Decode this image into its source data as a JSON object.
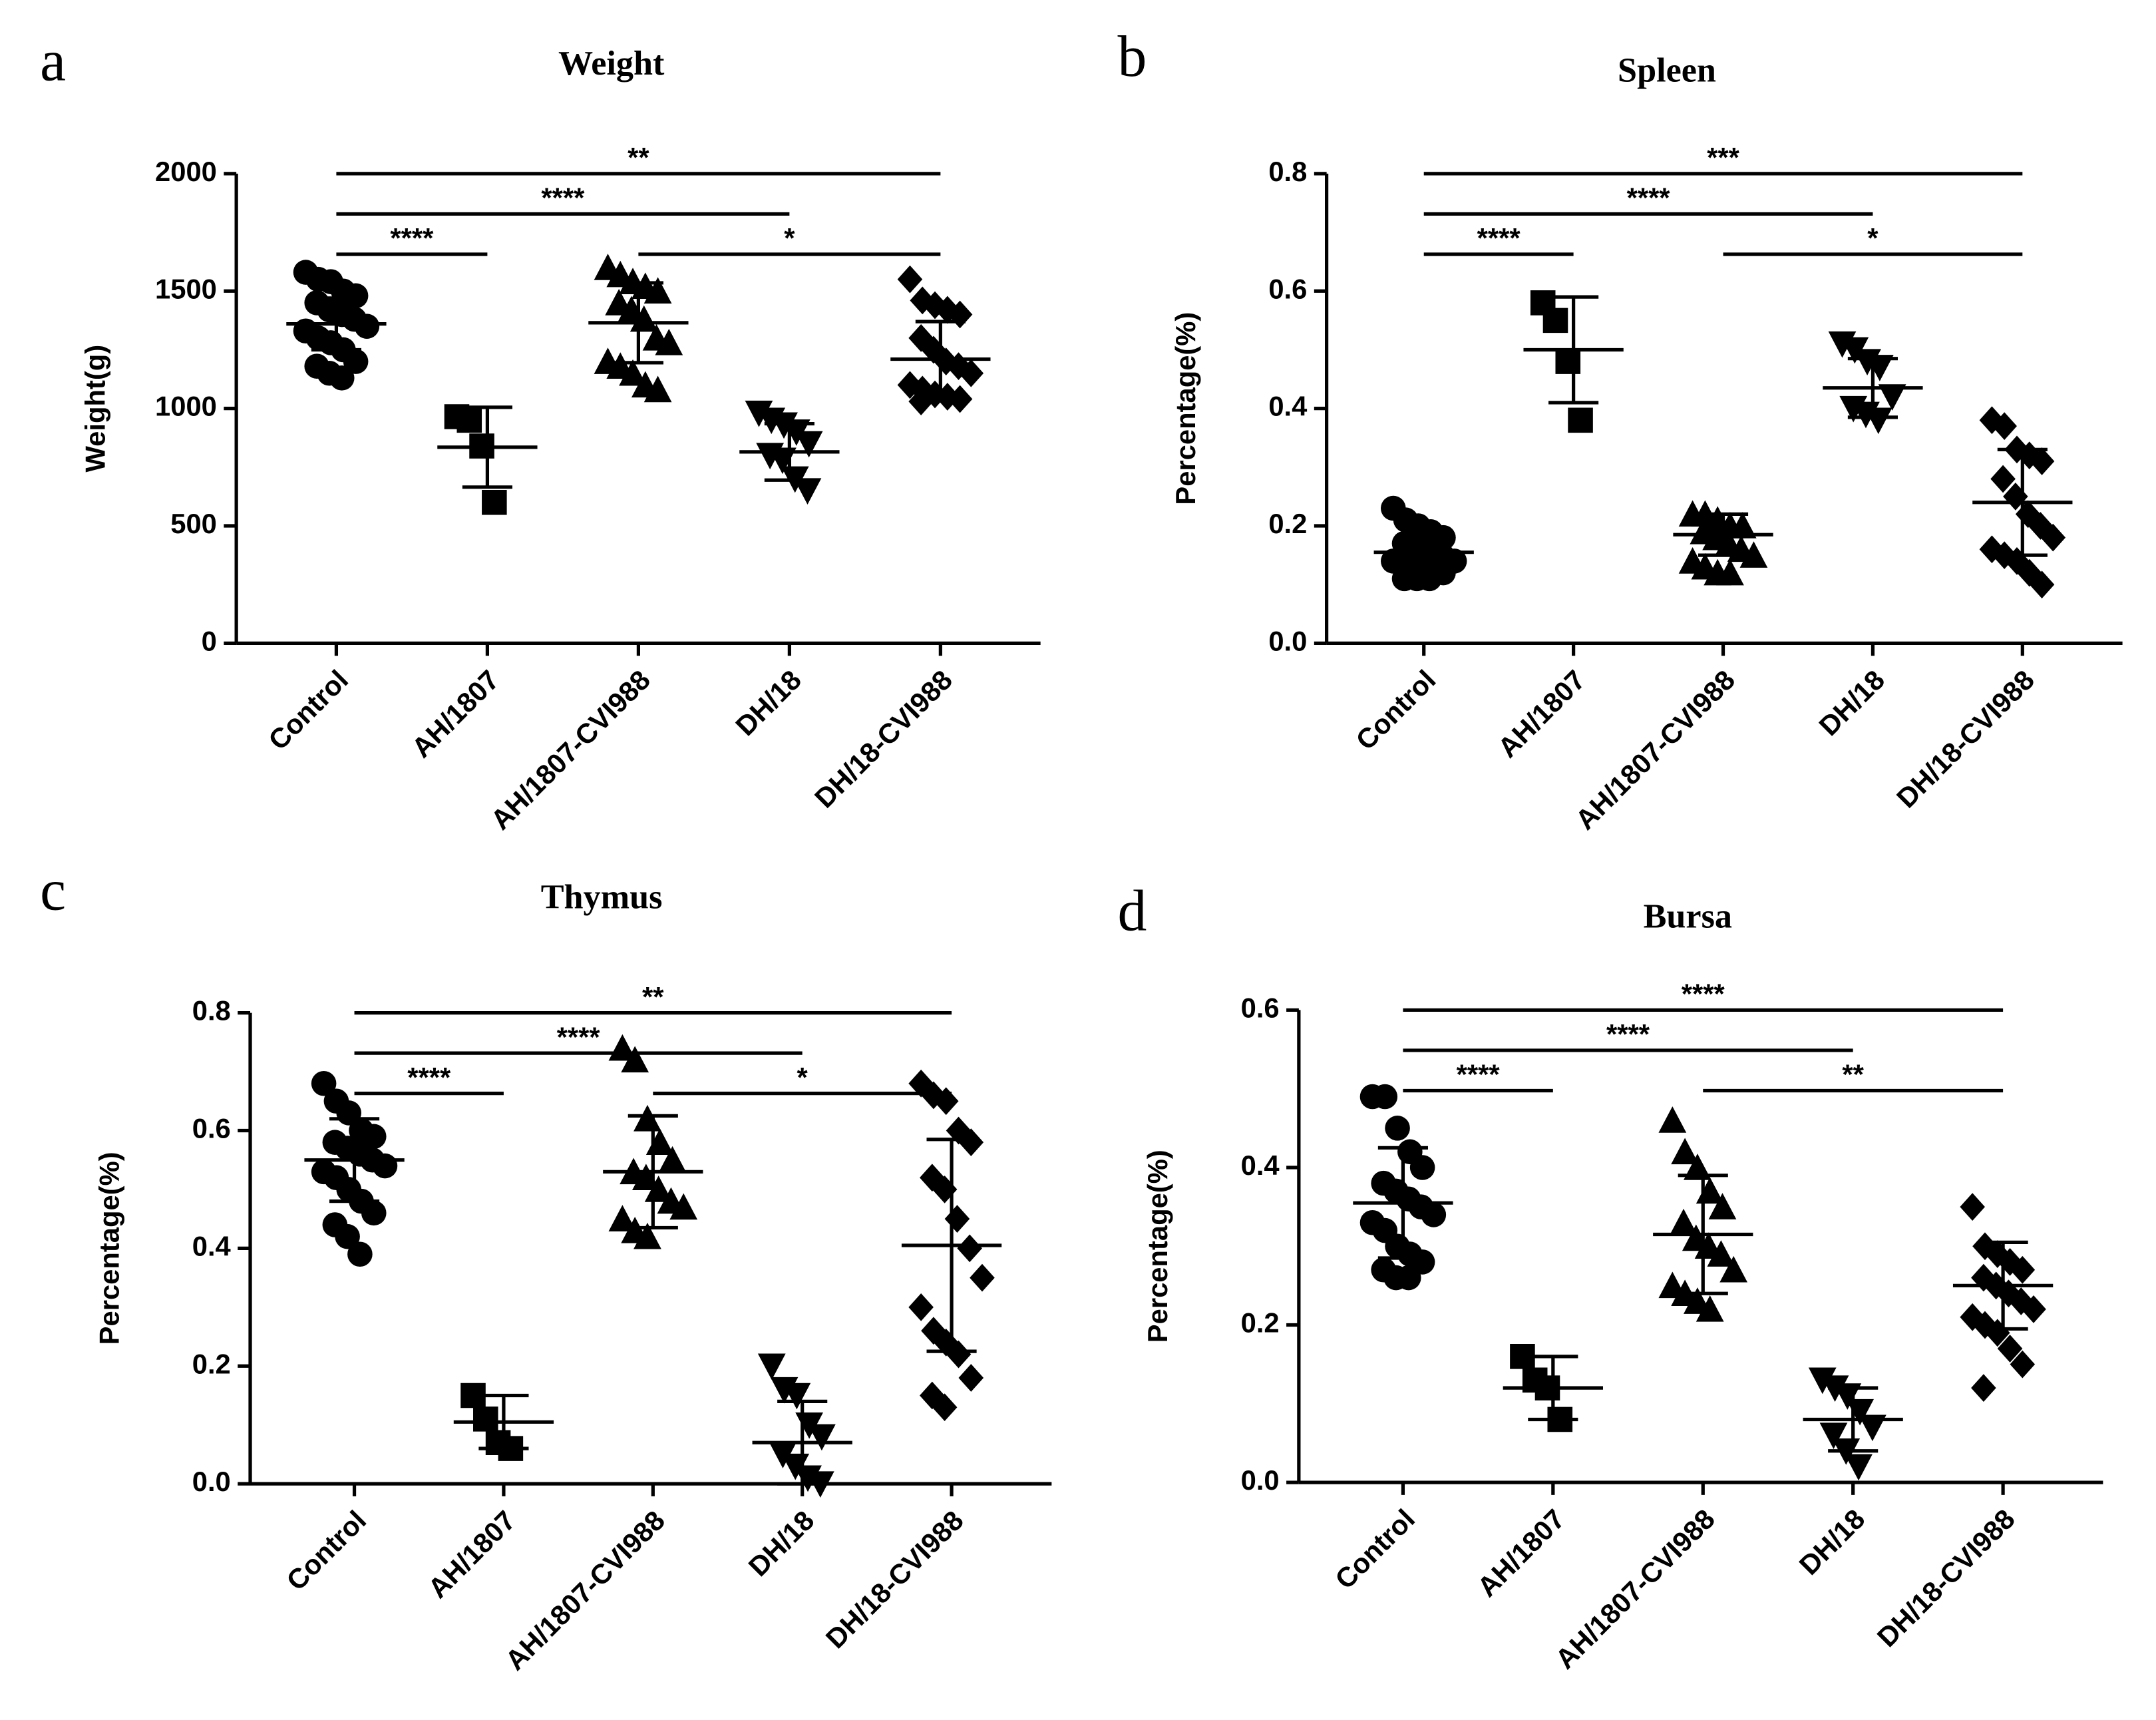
{
  "chart_data": [
    {
      "type": "dotplot",
      "panel": "a",
      "title": "Weight",
      "ylabel": "Weight(g)",
      "categories": [
        "Control",
        "AH/1807",
        "AH/1807-CVI988",
        "DH/18",
        "DH/18-CVI988"
      ],
      "markers": [
        "circle",
        "square",
        "triangle-up",
        "triangle-down",
        "diamond"
      ],
      "color": "#000000",
      "values": [
        [
          1580,
          1550,
          1540,
          1500,
          1480,
          1450,
          1420,
          1400,
          1380,
          1350,
          1330,
          1300,
          1280,
          1250,
          1200,
          1180,
          1150,
          1130
        ],
        [
          965,
          950,
          840,
          600
        ],
        [
          1600,
          1570,
          1540,
          1520,
          1500,
          1450,
          1420,
          1380,
          1300,
          1280,
          1200,
          1180,
          1150,
          1100,
          1080
        ],
        [
          980,
          950,
          930,
          900,
          850,
          800,
          780,
          700,
          650
        ],
        [
          1550,
          1460,
          1440,
          1420,
          1400,
          1300,
          1250,
          1200,
          1180,
          1150,
          1100,
          1080,
          1060,
          1050,
          1040,
          1030
        ]
      ],
      "means": [
        1360,
        835,
        1365,
        815,
        1210
      ],
      "sds": [
        110,
        170,
        170,
        120,
        160
      ],
      "ylim": [
        0,
        2000
      ],
      "yticks": [
        0,
        500,
        1000,
        1500,
        2000
      ],
      "comparisons": [
        {
          "pair": [
            0,
            1
          ],
          "label": "****"
        },
        {
          "pair": [
            2,
            4
          ],
          "label": "*"
        },
        {
          "pair": [
            0,
            3
          ],
          "label": "****"
        },
        {
          "pair": [
            0,
            4
          ],
          "label": "**"
        }
      ]
    },
    {
      "type": "dotplot",
      "panel": "b",
      "title": "Spleen",
      "ylabel": "Percentage(%)",
      "categories": [
        "Control",
        "AH/1807",
        "AH/1807-CVI988",
        "DH/18",
        "DH/18-CVI988"
      ],
      "markers": [
        "circle",
        "square",
        "triangle-up",
        "triangle-down",
        "diamond"
      ],
      "color": "#000000",
      "values": [
        [
          0.23,
          0.21,
          0.2,
          0.19,
          0.18,
          0.17,
          0.16,
          0.15,
          0.15,
          0.14,
          0.14,
          0.13,
          0.13,
          0.12,
          0.12,
          0.11,
          0.11,
          0.11
        ],
        [
          0.58,
          0.55,
          0.48,
          0.38
        ],
        [
          0.22,
          0.22,
          0.21,
          0.2,
          0.2,
          0.19,
          0.18,
          0.17,
          0.16,
          0.15,
          0.14,
          0.13,
          0.12,
          0.12
        ],
        [
          0.51,
          0.5,
          0.48,
          0.47,
          0.42,
          0.4,
          0.39,
          0.38
        ],
        [
          0.38,
          0.37,
          0.33,
          0.32,
          0.31,
          0.28,
          0.25,
          0.22,
          0.2,
          0.18,
          0.16,
          0.15,
          0.14,
          0.12,
          0.1
        ]
      ],
      "means": [
        0.155,
        0.5,
        0.185,
        0.435,
        0.24
      ],
      "sds": [
        0.03,
        0.09,
        0.035,
        0.05,
        0.09
      ],
      "ylim": [
        0,
        0.8
      ],
      "yticks": [
        {
          "value": 0,
          "label": "0.0"
        },
        0.2,
        0.4,
        0.6,
        0.8
      ],
      "comparisons": [
        {
          "pair": [
            0,
            1
          ],
          "label": "****"
        },
        {
          "pair": [
            2,
            4
          ],
          "label": "*"
        },
        {
          "pair": [
            0,
            3
          ],
          "label": "****"
        },
        {
          "pair": [
            0,
            4
          ],
          "label": "***"
        }
      ]
    },
    {
      "type": "dotplot",
      "panel": "c",
      "title": "Thymus",
      "ylabel": "Percentage(%)",
      "categories": [
        "Control",
        "AH/1807",
        "AH/1807-CVI988",
        "DH/18",
        "DH/18-CVI988"
      ],
      "markers": [
        "circle",
        "square",
        "triangle-up",
        "triangle-down",
        "diamond"
      ],
      "color": "#000000",
      "values": [
        [
          0.68,
          0.65,
          0.63,
          0.6,
          0.59,
          0.58,
          0.57,
          0.56,
          0.55,
          0.54,
          0.53,
          0.52,
          0.5,
          0.48,
          0.46,
          0.44,
          0.42,
          0.39
        ],
        [
          0.15,
          0.11,
          0.07,
          0.06
        ],
        [
          0.74,
          0.72,
          0.62,
          0.58,
          0.55,
          0.53,
          0.52,
          0.5,
          0.48,
          0.47,
          0.45,
          0.43,
          0.42
        ],
        [
          0.2,
          0.16,
          0.15,
          0.1,
          0.08,
          0.05,
          0.03,
          0.01,
          0
        ],
        [
          0.68,
          0.66,
          0.65,
          0.6,
          0.58,
          0.52,
          0.5,
          0.45,
          0.4,
          0.35,
          0.3,
          0.26,
          0.24,
          0.22,
          0.18,
          0.15,
          0.13
        ]
      ],
      "means": [
        0.55,
        0.105,
        0.53,
        0.07,
        0.405
      ],
      "sds": [
        0.07,
        0.045,
        0.095,
        0.07,
        0.18
      ],
      "ylim": [
        0,
        0.8
      ],
      "yticks": [
        {
          "value": 0,
          "label": "0.0"
        },
        0.2,
        0.4,
        0.6,
        0.8
      ],
      "comparisons": [
        {
          "pair": [
            0,
            1
          ],
          "label": "****"
        },
        {
          "pair": [
            2,
            4
          ],
          "label": "*"
        },
        {
          "pair": [
            0,
            3
          ],
          "label": "****"
        },
        {
          "pair": [
            0,
            4
          ],
          "label": "**"
        }
      ]
    },
    {
      "type": "dotplot",
      "panel": "d",
      "title": "Bursa",
      "ylabel": "Percentage(%)",
      "categories": [
        "Control",
        "AH/1807",
        "AH/1807-CVI988",
        "DH/18",
        "DH/18-CVI988"
      ],
      "markers": [
        "circle",
        "square",
        "triangle-up",
        "triangle-down",
        "diamond"
      ],
      "color": "#000000",
      "values": [
        [
          0.49,
          0.49,
          0.45,
          0.42,
          0.4,
          0.38,
          0.37,
          0.36,
          0.35,
          0.34,
          0.33,
          0.32,
          0.3,
          0.29,
          0.28,
          0.27,
          0.26,
          0.26
        ],
        [
          0.16,
          0.13,
          0.12,
          0.08
        ],
        [
          0.46,
          0.42,
          0.4,
          0.37,
          0.35,
          0.33,
          0.31,
          0.3,
          0.29,
          0.27,
          0.25,
          0.24,
          0.23,
          0.22
        ],
        [
          0.13,
          0.12,
          0.11,
          0.09,
          0.07,
          0.06,
          0.04,
          0.02
        ],
        [
          0.35,
          0.3,
          0.29,
          0.28,
          0.27,
          0.26,
          0.25,
          0.24,
          0.23,
          0.22,
          0.21,
          0.2,
          0.19,
          0.17,
          0.15,
          0.12
        ]
      ],
      "means": [
        0.355,
        0.12,
        0.315,
        0.08,
        0.25
      ],
      "sds": [
        0.07,
        0.04,
        0.075,
        0.04,
        0.055
      ],
      "ylim": [
        0,
        0.6
      ],
      "yticks": [
        {
          "value": 0,
          "label": "0.0"
        },
        0.2,
        0.4,
        0.6
      ],
      "comparisons": [
        {
          "pair": [
            0,
            1
          ],
          "label": "****"
        },
        {
          "pair": [
            2,
            4
          ],
          "label": "**"
        },
        {
          "pair": [
            0,
            3
          ],
          "label": "****"
        },
        {
          "pair": [
            0,
            4
          ],
          "label": "****"
        }
      ]
    }
  ]
}
